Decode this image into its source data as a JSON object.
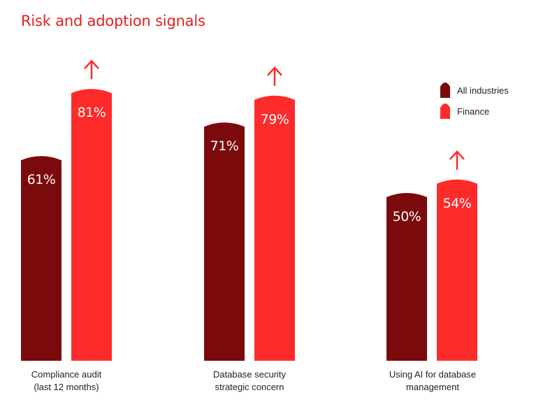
{
  "title": "Risk and adoption signals",
  "colors": {
    "all_industries": "#7a0a0b",
    "finance": "#fe2b2b",
    "title": "#e2201f"
  },
  "chart_data": {
    "type": "bar",
    "title": "Risk and adoption signals",
    "categories": [
      [
        "Compliance audit",
        "(last 12 months)"
      ],
      [
        "Database security",
        "strategic concern"
      ],
      [
        "Using AI for database",
        "management"
      ]
    ],
    "series": [
      {
        "name": "All industries",
        "values": [
          61,
          71,
          50
        ],
        "labels": [
          "61%",
          "71%",
          "50%"
        ]
      },
      {
        "name": "Finance",
        "values": [
          81,
          79,
          54
        ],
        "labels": [
          "81%",
          "79%",
          "54%"
        ]
      }
    ],
    "ylim": [
      0,
      100
    ],
    "grid": false,
    "legend": "top-right",
    "annotations": [
      "up-arrow-icon above each Finance bar"
    ]
  }
}
